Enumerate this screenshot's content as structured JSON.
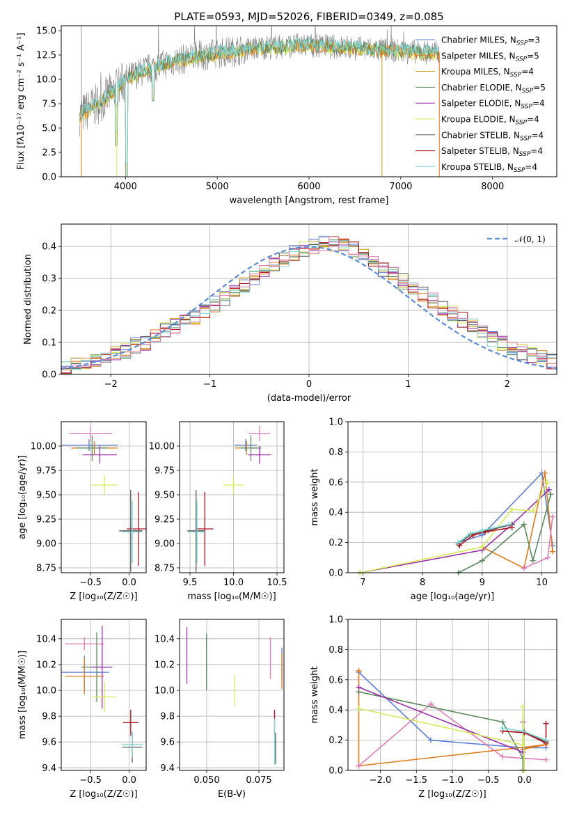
{
  "figure_title": "PLATE=0593, MJD=52026, FIBERID=0349, z=0.085",
  "colors": {
    "Chabrier MILES": "#5b7fd4",
    "Salpeter MILES": "#e07b1a",
    "Kroupa MILES": "#c89a0c",
    "Chabrier ELODIE": "#5a8a5e",
    "Salpeter ELODIE": "#9a2ea8",
    "Kroupa ELODIE": "#d6ea5a",
    "Chabrier STELIB": "#555555",
    "Salpeter STELIB": "#b2121b",
    "Kroupa STELIB": "#7fd6d6",
    "pink": "#e07cb8",
    "data": "#808080",
    "normal": "#5b8ad6"
  },
  "chart_data": [
    {
      "type": "line",
      "name": "spectrum",
      "title": "PLATE=0593, MJD=52026, FIBERID=0349, z=0.085",
      "xlabel": "wavelength [Angstrom, rest frame]",
      "ylabel": "Flux [fλ10⁻¹⁷ erg cm⁻² s⁻¹ A⁻¹]",
      "xlim": [
        3300,
        8700
      ],
      "ylim": [
        0,
        15.5
      ],
      "xticks": [
        4000,
        5000,
        6000,
        7000,
        8000
      ],
      "yticks": [
        0.0,
        2.5,
        5.0,
        7.5,
        10.0,
        12.5,
        15.0
      ],
      "grid": false,
      "legend_position": "top-right",
      "legend": [
        {
          "label": "Chabrier MILES, N",
          "sub": "SSP",
          "tail": "=3"
        },
        {
          "label": "Salpeter MILES, N",
          "sub": "SSP",
          "tail": "=5"
        },
        {
          "label": "Kroupa MILES, N",
          "sub": "SSP",
          "tail": "=4"
        },
        {
          "label": "Chabrier ELODIE, N",
          "sub": "SSP",
          "tail": "=5"
        },
        {
          "label": "Salpeter ELODIE, N",
          "sub": "SSP",
          "tail": "=4"
        },
        {
          "label": "Kroupa ELODIE, N",
          "sub": "SSP",
          "tail": "=4"
        },
        {
          "label": "Chabrier STELIB, N",
          "sub": "SSP",
          "tail": "=4"
        },
        {
          "label": "Salpeter STELIB, N",
          "sub": "SSP",
          "tail": "=4"
        },
        {
          "label": "Kroupa STELIB, N",
          "sub": "SSP",
          "tail": "=4"
        }
      ],
      "continuum": {
        "x": [
          3500,
          3700,
          3900,
          4000,
          4200,
          4500,
          4800,
          5100,
          5500,
          6000,
          6500,
          7000,
          7400
        ],
        "y": [
          6.3,
          7.5,
          9.0,
          10.0,
          10.9,
          11.8,
          12.4,
          12.8,
          13.3,
          13.5,
          13.2,
          12.9,
          12.7
        ]
      },
      "dips": [
        {
          "x": 3900,
          "y": 3.2
        },
        {
          "x": 4010,
          "y": 0
        },
        {
          "x": 4300,
          "y": 7.8
        }
      ]
    },
    {
      "type": "histogram",
      "name": "residuals",
      "xlabel": "(data-model)/error",
      "ylabel": "Normed distribution",
      "xlim": [
        -2.5,
        2.5
      ],
      "ylim": [
        0,
        0.47
      ],
      "xticks": [
        -2,
        -1,
        0,
        1,
        2
      ],
      "yticks": [
        0.0,
        0.1,
        0.2,
        0.3,
        0.4
      ],
      "grid": true,
      "legend_position": "top-right",
      "legend": [
        {
          "label": "𝒩(0, 1)"
        }
      ],
      "bin_width": 0.1,
      "bin_start": -2.5,
      "base_values": [
        0.02,
        0.03,
        0.04,
        0.05,
        0.06,
        0.07,
        0.075,
        0.09,
        0.1,
        0.12,
        0.14,
        0.15,
        0.17,
        0.18,
        0.2,
        0.22,
        0.24,
        0.26,
        0.28,
        0.3,
        0.32,
        0.34,
        0.36,
        0.38,
        0.39,
        0.4,
        0.41,
        0.41,
        0.4,
        0.39,
        0.37,
        0.35,
        0.33,
        0.31,
        0.29,
        0.27,
        0.25,
        0.23,
        0.21,
        0.19,
        0.17,
        0.15,
        0.13,
        0.11,
        0.1,
        0.08,
        0.07,
        0.06,
        0.05,
        0.04
      ]
    },
    {
      "type": "scatter",
      "name": "age-vs-Z",
      "xlabel": "Z [log₁₀(Z/Z☉)]",
      "ylabel": "age  [log₁₀(age/yr)]",
      "xlim": [
        -0.88,
        0.22
      ],
      "ylim": [
        8.7,
        10.25
      ],
      "xticks": [
        -0.5,
        0.0
      ],
      "yticks": [
        8.75,
        9.0,
        9.25,
        9.5,
        9.75,
        10.0
      ],
      "grid": true,
      "points": [
        {
          "c": "Chabrier MILES",
          "x": -0.52,
          "y": 10.01,
          "xe": 0.37,
          "ye": 0.06
        },
        {
          "c": "Salpeter MILES",
          "x": -0.45,
          "y": 9.98,
          "xe": 0.3,
          "ye": 0.07
        },
        {
          "c": "pink",
          "x": -0.5,
          "y": 10.13,
          "xe": 0.28,
          "ye": 0.08
        },
        {
          "c": "Chabrier ELODIE",
          "x": -0.48,
          "y": 9.98,
          "xe": 0.2,
          "ye": 0.13
        },
        {
          "c": "Salpeter ELODIE",
          "x": -0.38,
          "y": 9.91,
          "xe": 0.22,
          "ye": 0.09
        },
        {
          "c": "Kroupa ELODIE",
          "x": -0.32,
          "y": 9.6,
          "xe": 0.17,
          "ye": 0.1
        },
        {
          "c": "Chabrier STELIB",
          "x": 0.02,
          "y": 9.13,
          "xe": 0.15,
          "ye": 0.42
        },
        {
          "c": "Salpeter STELIB",
          "x": 0.12,
          "y": 9.15,
          "xe": 0.15,
          "ye": 0.38
        },
        {
          "c": "Kroupa STELIB",
          "x": 0.04,
          "y": 9.12,
          "xe": 0.13,
          "ye": 0.32
        }
      ]
    },
    {
      "type": "scatter",
      "name": "age-vs-mass",
      "xlabel": "mass [log₁₀(M/M☉)]",
      "ylabel": "",
      "xlim": [
        9.38,
        10.58
      ],
      "ylim": [
        8.7,
        10.25
      ],
      "xticks": [
        9.5,
        10.0,
        10.5
      ],
      "yticks": [
        8.75,
        9.0,
        9.25,
        9.5,
        9.75,
        10.0
      ],
      "grid": true,
      "points": [
        {
          "c": "Chabrier MILES",
          "x": 10.14,
          "y": 10.01,
          "xe": 0.13,
          "ye": 0.06
        },
        {
          "c": "Salpeter MILES",
          "x": 10.15,
          "y": 9.98,
          "xe": 0.13,
          "ye": 0.07
        },
        {
          "c": "pink",
          "x": 10.3,
          "y": 10.13,
          "xe": 0.12,
          "ye": 0.08
        },
        {
          "c": "Chabrier ELODIE",
          "x": 10.2,
          "y": 9.98,
          "xe": 0.12,
          "ye": 0.13
        },
        {
          "c": "Salpeter ELODIE",
          "x": 10.3,
          "y": 9.91,
          "xe": 0.13,
          "ye": 0.09
        },
        {
          "c": "Kroupa ELODIE",
          "x": 10.0,
          "y": 9.6,
          "xe": 0.12,
          "ye": 0.1
        },
        {
          "c": "Chabrier STELIB",
          "x": 9.57,
          "y": 9.13,
          "xe": 0.1,
          "ye": 0.42
        },
        {
          "c": "Salpeter STELIB",
          "x": 9.67,
          "y": 9.15,
          "xe": 0.1,
          "ye": 0.38
        },
        {
          "c": "Kroupa STELIB",
          "x": 9.58,
          "y": 9.12,
          "xe": 0.1,
          "ye": 0.32
        }
      ]
    },
    {
      "type": "line",
      "name": "mass-weight-vs-age",
      "xlabel": "age  [log₁₀(age/yr)]",
      "ylabel": "mass weight",
      "xlim": [
        6.75,
        10.25
      ],
      "ylim": [
        0.0,
        1.0
      ],
      "xticks": [
        7,
        8,
        9,
        10
      ],
      "yticks": [
        0.0,
        0.2,
        0.4,
        0.6,
        0.8,
        1.0
      ],
      "grid": true,
      "series": [
        {
          "c": "Chabrier MILES",
          "x": [
            8.6,
            9.0,
            10.0,
            10.18
          ],
          "y": [
            0.2,
            0.25,
            0.66,
            0.18
          ]
        },
        {
          "c": "Salpeter MILES",
          "x": [
            9.0,
            9.7,
            10.05,
            10.18
          ],
          "y": [
            0.17,
            0.03,
            0.66,
            0.14
          ]
        },
        {
          "c": "pink",
          "x": [
            9.7,
            10.1,
            10.18
          ],
          "y": [
            0.03,
            0.1,
            0.37
          ]
        },
        {
          "c": "Chabrier ELODIE",
          "x": [
            8.6,
            9.0,
            9.7,
            9.85,
            10.15
          ],
          "y": [
            0.0,
            0.08,
            0.32,
            0.08,
            0.52
          ]
        },
        {
          "c": "Salpeter ELODIE",
          "x": [
            6.95,
            9.0,
            9.5,
            10.12
          ],
          "y": [
            0.0,
            0.15,
            0.32,
            0.55
          ]
        },
        {
          "c": "Kroupa ELODIE",
          "x": [
            6.95,
            9.0,
            9.5,
            9.85,
            10.1
          ],
          "y": [
            0.0,
            0.17,
            0.42,
            0.41,
            0.6
          ]
        },
        {
          "c": "Chabrier STELIB",
          "x": [
            8.6,
            8.8,
            9.1,
            9.5
          ],
          "y": [
            0.19,
            0.25,
            0.28,
            0.32
          ]
        },
        {
          "c": "Salpeter STELIB",
          "x": [
            8.62,
            8.85,
            9.05,
            9.5
          ],
          "y": [
            0.18,
            0.25,
            0.27,
            0.3
          ]
        },
        {
          "c": "Kroupa STELIB",
          "x": [
            8.6,
            8.8,
            9.0,
            9.45
          ],
          "y": [
            0.2,
            0.26,
            0.28,
            0.32
          ]
        }
      ]
    },
    {
      "type": "scatter",
      "name": "mass-vs-Z",
      "xlabel": "Z [log₁₀(Z/Z☉)]",
      "ylabel": "mass [log₁₀(M/M☉)]",
      "xlim": [
        -0.88,
        0.22
      ],
      "ylim": [
        9.38,
        10.55
      ],
      "xticks": [
        -0.5,
        0.0
      ],
      "yticks": [
        9.4,
        9.6,
        9.8,
        10.0,
        10.2,
        10.4
      ],
      "grid": true,
      "points": [
        {
          "c": "Chabrier MILES",
          "x": -0.58,
          "y": 10.14,
          "xe": 0.32,
          "ye": 0.13
        },
        {
          "c": "Salpeter MILES",
          "x": -0.58,
          "y": 10.11,
          "xe": 0.25,
          "ye": 0.14
        },
        {
          "c": "pink",
          "x": -0.58,
          "y": 10.36,
          "xe": 0.25,
          "ye": 0.05
        },
        {
          "c": "Chabrier ELODIE",
          "x": -0.42,
          "y": 10.18,
          "xe": 0.2,
          "ye": 0.27
        },
        {
          "c": "Salpeter ELODIE",
          "x": -0.35,
          "y": 10.18,
          "xe": 0.13,
          "ye": 0.32
        },
        {
          "c": "Kroupa ELODIE",
          "x": -0.32,
          "y": 9.95,
          "xe": 0.15,
          "ye": 0.12
        },
        {
          "c": "Chabrier STELIB",
          "x": 0.04,
          "y": 9.56,
          "xe": 0.13,
          "ye": 0.12
        },
        {
          "c": "Salpeter STELIB",
          "x": 0.02,
          "y": 9.75,
          "xe": 0.1,
          "ye": 0.1
        },
        {
          "c": "Kroupa STELIB",
          "x": 0.04,
          "y": 9.58,
          "xe": 0.14,
          "ye": 0.1
        }
      ]
    },
    {
      "type": "scatter",
      "name": "mass-vs-ebv",
      "xlabel": "E(B-V)",
      "ylabel": "",
      "xlim": [
        0.037,
        0.087
      ],
      "ylim": [
        9.38,
        10.55
      ],
      "xticks": [
        0.05,
        0.075
      ],
      "yticks": [
        9.4,
        9.6,
        9.8,
        10.0,
        10.2,
        10.4
      ],
      "grid": true,
      "points": [
        {
          "c": "Salpeter ELODIE",
          "x": 0.0405,
          "y": 10.27,
          "ye": 0.22
        },
        {
          "c": "Chabrier ELODIE",
          "x": 0.0499,
          "y": 10.22,
          "ye": 0.22
        },
        {
          "c": "Kroupa ELODIE",
          "x": 0.0634,
          "y": 10.0,
          "ye": 0.12
        },
        {
          "c": "pink",
          "x": 0.0805,
          "y": 10.25,
          "ye": 0.16
        },
        {
          "c": "Chabrier MILES",
          "x": 0.086,
          "y": 10.2,
          "ye": 0.13
        },
        {
          "c": "Salpeter MILES",
          "x": 0.086,
          "y": 10.15,
          "ye": 0.14
        },
        {
          "c": "Salpeter STELIB",
          "x": 0.0825,
          "y": 9.75,
          "ye": 0.1
        },
        {
          "c": "Chabrier STELIB",
          "x": 0.083,
          "y": 9.55,
          "ye": 0.12
        },
        {
          "c": "Kroupa STELIB",
          "x": 0.0825,
          "y": 9.6,
          "ye": 0.18
        }
      ]
    },
    {
      "type": "line",
      "name": "mass-weight-vs-Z",
      "xlabel": "Z [log₁₀(Z/Z☉)]",
      "ylabel": "mass weight",
      "xlim": [
        -2.45,
        0.45
      ],
      "ylim": [
        0.0,
        1.0
      ],
      "xticks": [
        -2.0,
        -1.5,
        -1.0,
        -0.5,
        0.0
      ],
      "yticks": [
        0.0,
        0.2,
        0.4,
        0.6,
        0.8,
        1.0
      ],
      "grid": true,
      "series": [
        {
          "c": "Chabrier MILES",
          "x": [
            -2.3,
            -1.3,
            -0.02,
            0.3
          ],
          "y": [
            0.65,
            0.2,
            0.15,
            0.15
          ]
        },
        {
          "c": "Salpeter MILES",
          "x": [
            -2.3,
            -2.3,
            0.3,
            -0.02
          ],
          "y": [
            0.66,
            0.03,
            0.17,
            0.14
          ]
        },
        {
          "c": "pink",
          "x": [
            -2.3,
            -1.3,
            -0.3,
            0.3
          ],
          "y": [
            0.03,
            0.44,
            0.09,
            0.07
          ]
        },
        {
          "c": "Chabrier ELODIE",
          "x": [
            -2.3,
            -0.3,
            -0.02,
            -0.02
          ],
          "y": [
            0.52,
            0.32,
            0.08,
            0.0
          ]
        },
        {
          "c": "Salpeter ELODIE",
          "x": [
            -2.3,
            -0.02,
            -0.02
          ],
          "y": [
            0.55,
            0.12,
            0.32
          ]
        },
        {
          "c": "Kroupa ELODIE",
          "x": [
            -2.3,
            -0.02,
            -0.02,
            0.0
          ],
          "y": [
            0.41,
            0.17,
            0.42,
            0.0
          ]
        },
        {
          "c": "Chabrier STELIB",
          "x": [
            -0.3,
            0.0,
            0.3
          ],
          "y": [
            0.26,
            0.25,
            0.19
          ]
        },
        {
          "c": "Salpeter STELIB",
          "x": [
            -0.3,
            0.0,
            0.3,
            0.3
          ],
          "y": [
            0.26,
            0.25,
            0.18,
            0.31
          ]
        },
        {
          "c": "Kroupa STELIB",
          "x": [
            -0.3,
            -0.02,
            0.3
          ],
          "y": [
            0.28,
            0.26,
            0.2
          ]
        }
      ]
    }
  ]
}
